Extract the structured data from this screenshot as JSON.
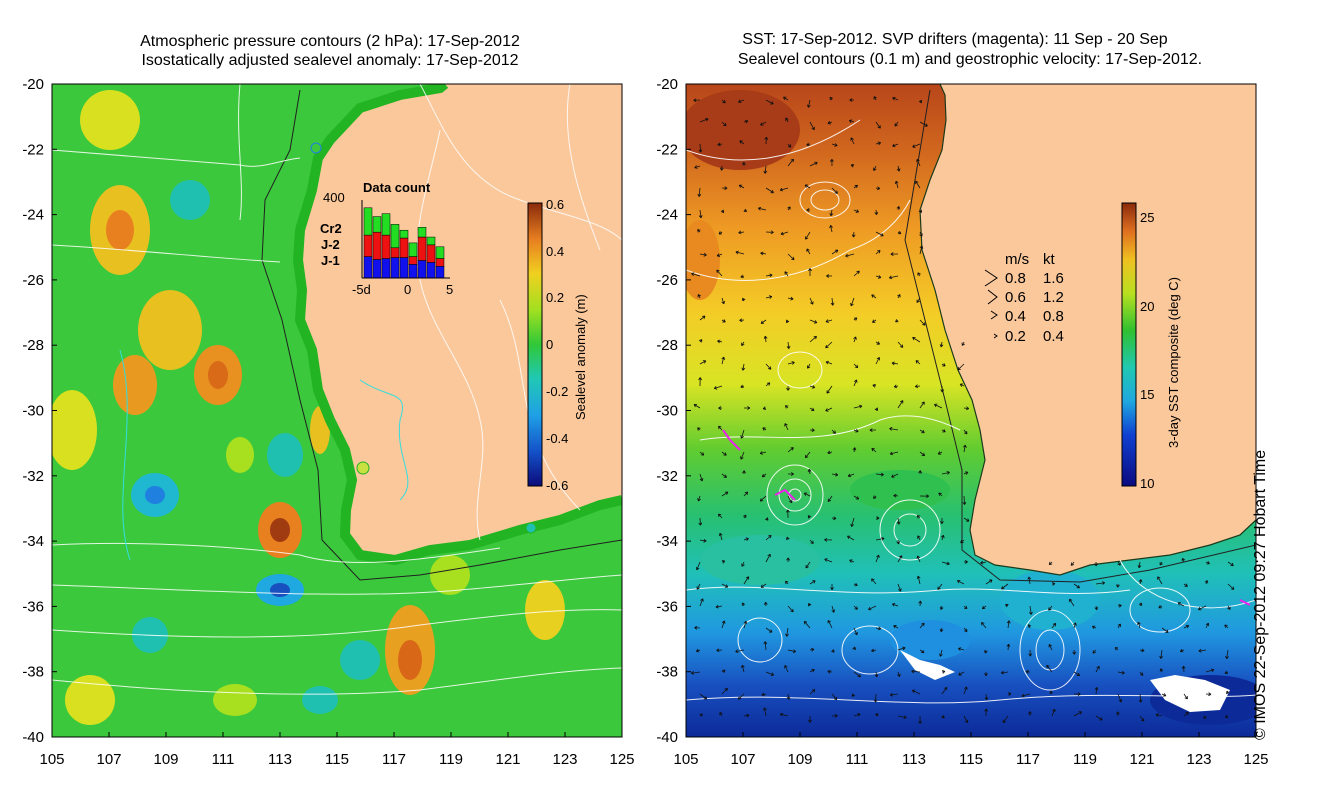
{
  "left_panel": {
    "title_line1": "Atmospheric pressure contours (2 hPa): 17-Sep-2012",
    "title_line2": "Isostatically adjusted sealevel anomaly: 17-Sep-2012",
    "colorbar": {
      "label": "Sealevel anomaly (m)",
      "ticks": [
        "0.6",
        "0.4",
        "0.2",
        "0",
        "-0.2",
        "-0.4",
        "-0.6"
      ],
      "min": -0.6,
      "max": 0.6
    },
    "data_count": {
      "title": "Data count",
      "ymax_label": "400",
      "xticks": [
        "-5d",
        "0",
        "5"
      ],
      "legend": [
        {
          "label": "Cr2",
          "color": "#22dd22"
        },
        {
          "label": "J-2",
          "color": "#ee1111"
        },
        {
          "label": "J-1",
          "color": "#1111ee"
        }
      ],
      "bars": [
        {
          "day": -5,
          "j1": 110,
          "j2": 110,
          "cr2": 140
        },
        {
          "day": -4,
          "j1": 95,
          "j2": 140,
          "cr2": 80
        },
        {
          "day": -3,
          "j1": 100,
          "j2": 120,
          "cr2": 110
        },
        {
          "day": -2,
          "j1": 105,
          "j2": 50,
          "cr2": 120
        },
        {
          "day": -1,
          "j1": 105,
          "j2": 100,
          "cr2": 40
        },
        {
          "day": 0,
          "j1": 70,
          "j2": 40,
          "cr2": 70
        },
        {
          "day": 1,
          "j1": 90,
          "j2": 120,
          "cr2": 50
        },
        {
          "day": 2,
          "j1": 80,
          "j2": 90,
          "cr2": 40
        },
        {
          "day": 3,
          "j1": 60,
          "j2": 40,
          "cr2": 60
        }
      ]
    }
  },
  "right_panel": {
    "title_line1": "SST: 17-Sep-2012. SVP drifters (magenta): 11 Sep - 20 Sep",
    "title_line2": "Sealevel contours (0.1 m) and geostrophic velocity: 17-Sep-2012.",
    "colorbar": {
      "label": "3-day SST composite (deg C)",
      "ticks": [
        "25",
        "20",
        "15",
        "10"
      ],
      "min": 10,
      "max": 26
    },
    "velocity_legend": {
      "header_ms": "m/s",
      "header_kt": "kt",
      "rows": [
        {
          "ms": "0.8",
          "kt": "1.6"
        },
        {
          "ms": "0.6",
          "kt": "1.2"
        },
        {
          "ms": "0.4",
          "kt": "0.8"
        },
        {
          "ms": "0.2",
          "kt": "0.4"
        }
      ]
    }
  },
  "axes": {
    "lat_ticks": [
      "-20",
      "-22",
      "-24",
      "-26",
      "-28",
      "-30",
      "-32",
      "-34",
      "-36",
      "-38",
      "-40"
    ],
    "lon_ticks": [
      "105",
      "107",
      "109",
      "111",
      "113",
      "115",
      "117",
      "119",
      "121",
      "123",
      "125"
    ],
    "lon_range": [
      105,
      125
    ],
    "lat_range": [
      -40,
      -20
    ]
  },
  "copyright": "© IMOS 22-Sep-2012 09:27 Hobart Time",
  "colors": {
    "land": "#fbc89c",
    "ocean_green": "#33cc33",
    "coast_green": "#22b422"
  }
}
